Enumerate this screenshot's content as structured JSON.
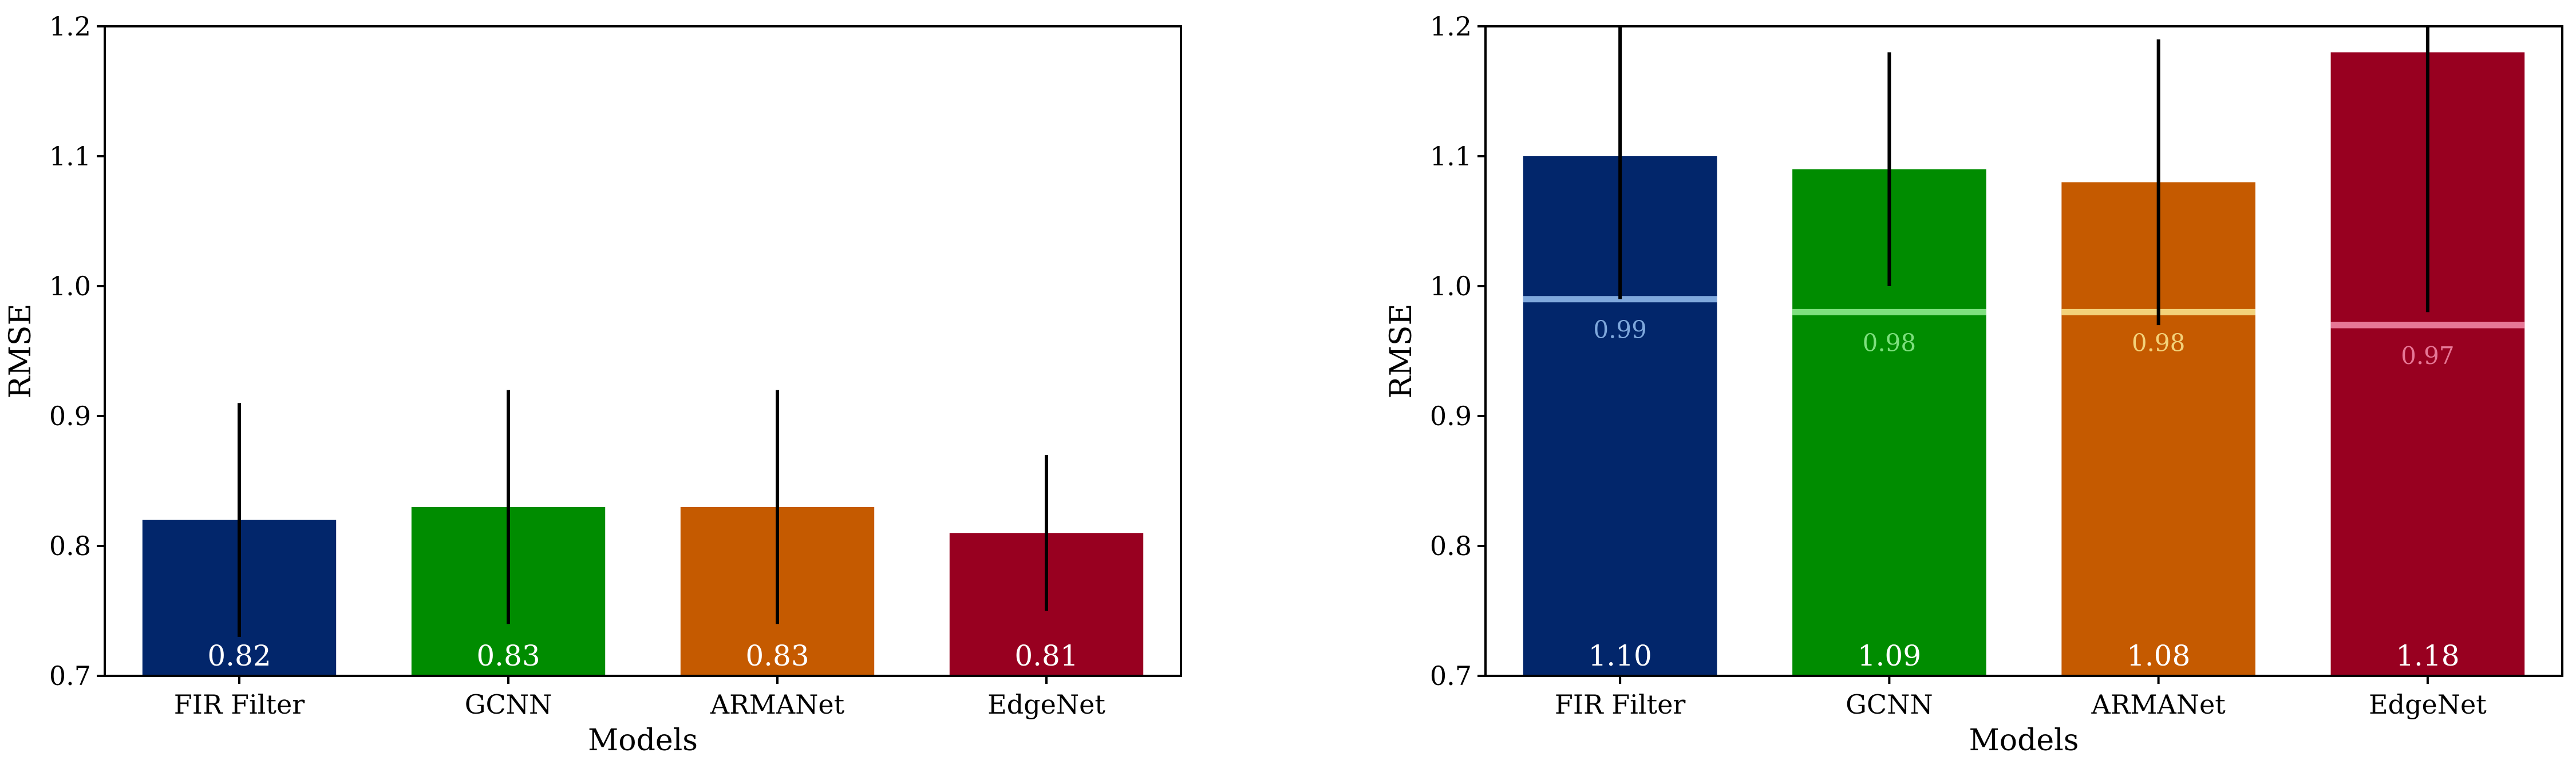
{
  "chart_data": [
    {
      "type": "bar",
      "categories": [
        "FIR Filter",
        "GCNN",
        "ARMANet",
        "EdgeNet"
      ],
      "values": [
        0.82,
        0.83,
        0.83,
        0.81
      ],
      "value_labels": [
        "0.82",
        "0.83",
        "0.83",
        "0.81"
      ],
      "error_bars": [
        {
          "low": 0.73,
          "high": 0.91
        },
        {
          "low": 0.74,
          "high": 0.92
        },
        {
          "low": 0.74,
          "high": 0.92
        },
        {
          "low": 0.75,
          "high": 0.87
        }
      ],
      "colors": [
        "#02266b",
        "#008c00",
        "#c55a00",
        "#980020"
      ],
      "xlabel": "Models",
      "ylabel": "RMSE",
      "ylim": [
        0.7,
        1.2
      ],
      "yticks": [
        "0.7",
        "0.8",
        "0.9",
        "1.0",
        "1.1",
        "1.2"
      ],
      "grid": false
    },
    {
      "type": "bar",
      "categories": [
        "FIR Filter",
        "GCNN",
        "ARMANet",
        "EdgeNet"
      ],
      "values": [
        1.1,
        1.09,
        1.08,
        1.18
      ],
      "value_labels": [
        "1.10",
        "1.09",
        "1.08",
        "1.18"
      ],
      "error_bars": [
        {
          "low": 0.99,
          "high": 1.2
        },
        {
          "low": 1.0,
          "high": 1.18
        },
        {
          "low": 0.97,
          "high": 1.19
        },
        {
          "low": 0.98,
          "high": 1.2
        }
      ],
      "reference_lines": [
        {
          "value": 0.99,
          "label": "0.99",
          "color": "#7fa8dc"
        },
        {
          "value": 0.98,
          "label": "0.98",
          "color": "#7ee07e"
        },
        {
          "value": 0.98,
          "label": "0.98",
          "color": "#f3d27a"
        },
        {
          "value": 0.97,
          "label": "0.97",
          "color": "#e67796"
        }
      ],
      "colors": [
        "#02266b",
        "#008c00",
        "#c55a00",
        "#980020"
      ],
      "xlabel": "Models",
      "ylabel": "RMSE",
      "ylim": [
        0.7,
        1.2
      ],
      "yticks": [
        "0.7",
        "0.8",
        "0.9",
        "1.0",
        "1.1",
        "1.2"
      ],
      "grid": false
    }
  ]
}
